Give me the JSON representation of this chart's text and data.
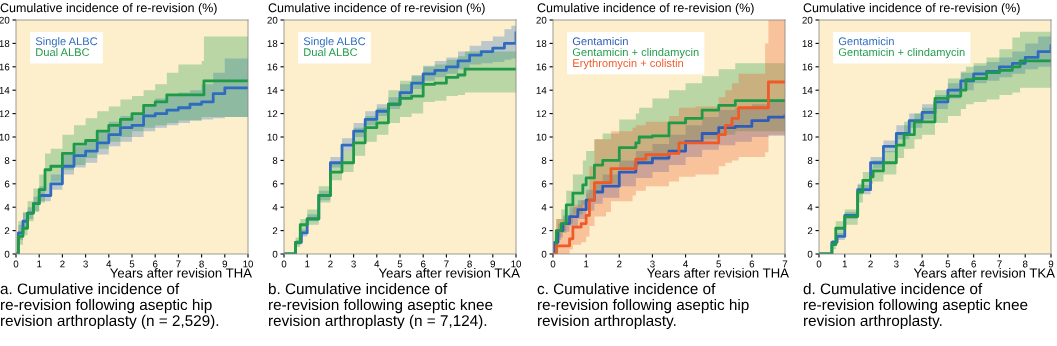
{
  "chart_data": [
    {
      "type": "step",
      "title": "Cumulative incidence of re-revision (%)",
      "xlabel": "Years after revision THA",
      "xlim": [
        0,
        10
      ],
      "xticks": [
        0,
        1,
        2,
        3,
        4,
        5,
        6,
        7,
        8,
        9,
        10
      ],
      "ylim": [
        0,
        20
      ],
      "yticks": [
        0,
        2,
        4,
        6,
        8,
        10,
        12,
        14,
        16,
        18,
        20
      ],
      "grid": false,
      "legend": "top left",
      "annotations": [
        "a. Cumulative incidence of re-revision following aseptic hip revision arthroplasty (n = 2,529)."
      ],
      "series": [
        {
          "name": "Single ALBC",
          "color": "#2f6cc0",
          "x": [
            0,
            0.1,
            0.3,
            0.5,
            0.75,
            1,
            1.5,
            2,
            2.5,
            3,
            3.5,
            4,
            4.5,
            5,
            5.5,
            6,
            6.5,
            7,
            7.5,
            8,
            8.5,
            9,
            10
          ],
          "values": [
            0,
            1.8,
            2.8,
            3.5,
            4.3,
            5.0,
            6.0,
            7.5,
            8.4,
            8.8,
            9.5,
            10.2,
            10.8,
            11.0,
            11.8,
            12.0,
            12.3,
            12.5,
            12.8,
            13.0,
            13.7,
            14.2,
            14.2
          ],
          "lower": [
            0,
            1.2,
            2.2,
            3.0,
            3.7,
            4.5,
            5.5,
            6.8,
            7.4,
            7.8,
            8.5,
            9.2,
            9.6,
            10.0,
            10.5,
            10.8,
            11.0,
            11.2,
            11.4,
            11.5,
            11.6,
            11.7,
            11.7
          ],
          "upper": [
            0,
            2.5,
            3.5,
            4.0,
            4.9,
            5.8,
            6.8,
            8.5,
            9.2,
            9.8,
            10.5,
            11.3,
            11.8,
            12.0,
            12.8,
            13.3,
            13.5,
            13.8,
            14.0,
            14.5,
            15.5,
            16.7,
            16.7
          ]
        },
        {
          "name": "Dual ALBC",
          "color": "#1f9a48",
          "x": [
            0,
            0.1,
            0.3,
            0.5,
            0.75,
            1,
            1.25,
            1.5,
            2,
            2.5,
            3,
            3.5,
            4,
            4.5,
            5,
            5.5,
            6,
            6.5,
            7,
            8,
            8.1,
            10
          ],
          "values": [
            0,
            1.5,
            2.2,
            3.5,
            4.3,
            5.5,
            7.2,
            7.5,
            8.6,
            9.4,
            9.7,
            10.5,
            11.0,
            11.5,
            12.0,
            12.7,
            13.0,
            13.6,
            13.6,
            13.6,
            14.8,
            14.8
          ],
          "lower": [
            0,
            0.8,
            1.6,
            2.8,
            3.6,
            4.4,
            5.8,
            6.2,
            7.2,
            7.6,
            8.2,
            9.0,
            9.6,
            10.0,
            10.5,
            10.8,
            11.0,
            11.2,
            11.4,
            11.7,
            11.7,
            11.7
          ],
          "upper": [
            0,
            2.8,
            3.6,
            4.5,
            5.6,
            6.8,
            8.6,
            9.0,
            10.2,
            11.0,
            11.6,
            12.2,
            12.6,
            13.2,
            13.5,
            14.0,
            14.5,
            15.5,
            16.2,
            16.5,
            18.6,
            18.6
          ]
        }
      ]
    },
    {
      "type": "step",
      "title": "Cumulative incidence of re-revision (%)",
      "xlabel": "Years after revision TKA",
      "xlim": [
        0,
        10
      ],
      "xticks": [
        0,
        1,
        2,
        3,
        4,
        5,
        6,
        7,
        8,
        9,
        10
      ],
      "ylim": [
        0,
        20
      ],
      "yticks": [
        0,
        2,
        4,
        6,
        8,
        10,
        12,
        14,
        16,
        18,
        20
      ],
      "grid": false,
      "legend": "top left",
      "annotations": [
        "b. Cumulative incidence of re-revision following aseptic knee revision arthroplasty (n = 7,124)."
      ],
      "series": [
        {
          "name": "Single ALBC",
          "color": "#2f6cc0",
          "x": [
            0,
            0.5,
            0.75,
            1,
            1.5,
            2,
            2.5,
            3,
            3.5,
            4,
            4.5,
            5,
            5.5,
            6,
            6.5,
            7,
            7.5,
            8,
            8.5,
            9,
            9.5,
            9.8,
            10
          ],
          "values": [
            0,
            1,
            1.8,
            3,
            5,
            7.8,
            9.3,
            10.5,
            11.5,
            12.2,
            12.8,
            13.8,
            14.6,
            15.4,
            15.7,
            16.0,
            16.5,
            17.0,
            17.3,
            17.6,
            18.0,
            18.0,
            18.9
          ],
          "lower": [
            0,
            0.8,
            1.5,
            2.8,
            4.6,
            7.4,
            8.8,
            10.0,
            11.0,
            11.8,
            12.4,
            13.3,
            14.1,
            14.8,
            15.1,
            15.4,
            15.8,
            16.2,
            16.3,
            16.4,
            16.6,
            16.7,
            16.8
          ],
          "upper": [
            0,
            1.2,
            2.1,
            3.4,
            5.4,
            8.3,
            9.9,
            11.2,
            12.2,
            12.8,
            13.4,
            14.5,
            15.3,
            16.1,
            16.5,
            16.8,
            17.3,
            17.8,
            18.2,
            18.6,
            19.2,
            19.5,
            20
          ]
        },
        {
          "name": "Dual ALBC",
          "color": "#1f9a48",
          "x": [
            0,
            0.5,
            0.7,
            1,
            1.5,
            2,
            2.5,
            3,
            3.5,
            4,
            4.5,
            5,
            5.5,
            6,
            6.5,
            7,
            7.5,
            7.8,
            10
          ],
          "values": [
            0,
            1,
            2.5,
            3.0,
            5,
            7,
            7.8,
            9.5,
            10.8,
            11.2,
            12.8,
            13.3,
            13.5,
            14.5,
            14.6,
            15.1,
            15.3,
            15.8,
            15.8
          ],
          "lower": [
            0,
            0.6,
            1.8,
            2.5,
            4.4,
            6.3,
            7.0,
            8.4,
            9.6,
            10.2,
            11.2,
            11.7,
            12.0,
            13.0,
            13.1,
            13.5,
            13.6,
            13.8,
            13.8
          ],
          "upper": [
            0,
            1.4,
            3.0,
            3.8,
            5.8,
            7.8,
            8.8,
            10.8,
            11.8,
            12.5,
            14.0,
            14.8,
            15.2,
            16.0,
            16.2,
            16.6,
            16.9,
            17.3,
            17.3
          ]
        }
      ]
    },
    {
      "type": "step",
      "title": "Cumulative incidence of re-revision (%)",
      "xlabel": "Years after revision THA",
      "xlim": [
        0,
        7
      ],
      "xticks": [
        0,
        1,
        2,
        3,
        4,
        5,
        6,
        7
      ],
      "ylim": [
        0,
        20
      ],
      "yticks": [
        0,
        2,
        4,
        6,
        8,
        10,
        12,
        14,
        16,
        18,
        20
      ],
      "grid": false,
      "legend": "top left",
      "annotations": [
        "c. Cumulative incidence of re-revision following aseptic hip revision arthroplasty."
      ],
      "series": [
        {
          "name": "Gentamicin",
          "color": "#2f5cb8",
          "x": [
            0,
            0.05,
            0.15,
            0.3,
            0.5,
            0.75,
            1,
            1.25,
            1.5,
            2,
            2.5,
            3,
            3.5,
            4,
            4.5,
            5,
            5.5,
            6,
            6.5,
            7
          ],
          "values": [
            0,
            1,
            2,
            2.6,
            3.2,
            3.8,
            4.6,
            5.3,
            5.8,
            7.0,
            7.8,
            8.2,
            8.8,
            9.6,
            10.3,
            10.8,
            10.9,
            11.4,
            11.7,
            11.8
          ],
          "lower": [
            0,
            0.5,
            1.4,
            1.9,
            2.4,
            3.0,
            3.7,
            4.3,
            4.8,
            5.8,
            6.5,
            7.0,
            7.6,
            8.3,
            8.9,
            9.3,
            9.6,
            10.0,
            10.1,
            10.2
          ],
          "upper": [
            0,
            1.5,
            2.6,
            3.3,
            4.0,
            4.6,
            5.5,
            6.2,
            6.8,
            8.0,
            8.8,
            9.4,
            10.2,
            11.0,
            11.7,
            12.3,
            12.5,
            12.8,
            13.2,
            13.5
          ]
        },
        {
          "name": "Gentamicin + clindamycin",
          "color": "#1f9a48",
          "x": [
            0,
            0.1,
            0.25,
            0.4,
            0.6,
            0.9,
            1,
            1.25,
            1.5,
            2,
            2.5,
            2.6,
            3,
            3.5,
            4,
            4.5,
            5,
            5.5,
            7
          ],
          "values": [
            0,
            2,
            2.6,
            4.2,
            5.2,
            5.9,
            6.5,
            7.6,
            8.0,
            9.1,
            9.5,
            10.0,
            10.1,
            11.2,
            11.6,
            12.3,
            12.7,
            13.1,
            13.1
          ],
          "lower": [
            0,
            1.2,
            1.8,
            2.6,
            3.4,
            4.2,
            4.6,
            5.4,
            6.0,
            7.2,
            7.5,
            7.8,
            8.0,
            8.8,
            9.4,
            9.8,
            10.2,
            10.5,
            10.5
          ],
          "upper": [
            0,
            3.0,
            3.8,
            5.4,
            6.8,
            8.0,
            8.8,
            9.8,
            10.3,
            11.5,
            12.0,
            12.5,
            13.3,
            14.0,
            14.6,
            15.2,
            15.8,
            16.3,
            16.3
          ]
        },
        {
          "name": "Erythromycin + colistin",
          "color": "#f05a28",
          "x": [
            0,
            0.1,
            0.4,
            0.5,
            0.6,
            0.85,
            1,
            1.1,
            1.25,
            1.6,
            1.75,
            2.4,
            2.5,
            2.8,
            3.5,
            3.8,
            4.3,
            5,
            5.2,
            5.4,
            5.6,
            6.4,
            6.5,
            7
          ],
          "values": [
            0,
            0.7,
            0.7,
            1.3,
            2.3,
            2.6,
            3.3,
            4.6,
            6.1,
            6.1,
            7.3,
            7.3,
            8.1,
            8.5,
            8.6,
            9.5,
            9.5,
            10.2,
            11.0,
            11.6,
            12.5,
            12.5,
            14.7,
            14.7
          ],
          "lower": [
            0,
            0,
            0,
            0.4,
            0.8,
            1.0,
            1.5,
            2.4,
            3.2,
            3.6,
            4.5,
            5.0,
            5.4,
            5.8,
            6.2,
            6.6,
            6.8,
            7.5,
            7.8,
            8.0,
            8.3,
            8.7,
            10.2,
            10.2
          ],
          "upper": [
            0,
            3.0,
            3.0,
            3.4,
            4.2,
            4.6,
            5.2,
            7.5,
            9.8,
            9.8,
            10.5,
            10.8,
            11.0,
            11.3,
            11.8,
            12.5,
            12.6,
            13.4,
            14.0,
            14.6,
            15.4,
            18.0,
            20,
            20
          ]
        }
      ]
    },
    {
      "type": "step",
      "title": "Cumulative incidence of re-revision (%)",
      "xlabel": "Years after revision TKA",
      "xlim": [
        0,
        9
      ],
      "xticks": [
        0,
        1,
        2,
        3,
        4,
        5,
        6,
        7,
        8,
        9
      ],
      "ylim": [
        0,
        20
      ],
      "yticks": [
        0,
        2,
        4,
        6,
        8,
        10,
        12,
        14,
        16,
        18,
        20
      ],
      "grid": false,
      "legend": "top left",
      "annotations": [
        "d. Cumulative incidence of re-revision following aseptic knee revision arthroplasty."
      ],
      "series": [
        {
          "name": "Gentamicin",
          "color": "#2f6cc0",
          "x": [
            0,
            0.5,
            0.7,
            1,
            1.5,
            2,
            2.5,
            3,
            3.5,
            4,
            4.5,
            5,
            5.5,
            6,
            6.5,
            7,
            7.5,
            8,
            8.5,
            9
          ],
          "values": [
            0,
            1.0,
            1.5,
            3.3,
            5.5,
            7.8,
            9.2,
            10.3,
            11.4,
            12.1,
            13.0,
            14.0,
            14.8,
            15.4,
            15.6,
            16.0,
            16.3,
            16.8,
            17.3,
            17.8
          ],
          "lower": [
            0,
            0.8,
            1.2,
            3.0,
            5.1,
            7.3,
            8.7,
            9.8,
            10.8,
            11.5,
            12.4,
            13.3,
            14.0,
            14.6,
            14.8,
            15.1,
            15.4,
            15.8,
            16.0,
            16.3
          ],
          "upper": [
            0,
            1.2,
            1.8,
            3.6,
            5.9,
            8.3,
            9.7,
            11.0,
            12.0,
            12.8,
            13.6,
            14.6,
            15.5,
            16.1,
            16.4,
            16.8,
            17.3,
            18.0,
            18.6,
            19.3
          ]
        },
        {
          "name": "Gentamicin + clindamycin",
          "color": "#1f9a48",
          "x": [
            0,
            0.5,
            0.65,
            1,
            1.5,
            1.7,
            2,
            2.1,
            2.5,
            3,
            3.3,
            3.7,
            4,
            4.5,
            5,
            5.5,
            5.7,
            6,
            6.5,
            7,
            7.5,
            7.8,
            9
          ],
          "values": [
            0,
            0.8,
            2.2,
            3.2,
            5.3,
            6.3,
            6.6,
            7.1,
            7.8,
            9.3,
            10.2,
            11.3,
            11.3,
            13.3,
            13.5,
            14.0,
            14.9,
            15.0,
            15.5,
            15.7,
            16.0,
            16.5,
            16.5
          ],
          "lower": [
            0,
            0.4,
            1.6,
            2.5,
            4.4,
            5.4,
            6.0,
            6.2,
            6.8,
            8.2,
            9.0,
            9.8,
            10.2,
            11.2,
            11.8,
            12.4,
            12.8,
            13.0,
            13.2,
            13.6,
            13.8,
            14.2,
            14.2
          ],
          "upper": [
            0,
            1.2,
            2.8,
            3.8,
            6.0,
            7.0,
            7.4,
            8.0,
            8.8,
            10.4,
            11.3,
            12.0,
            12.5,
            14.0,
            15.0,
            15.6,
            16.0,
            16.3,
            16.8,
            17.5,
            18.5,
            19.0,
            19.0
          ]
        }
      ]
    }
  ]
}
